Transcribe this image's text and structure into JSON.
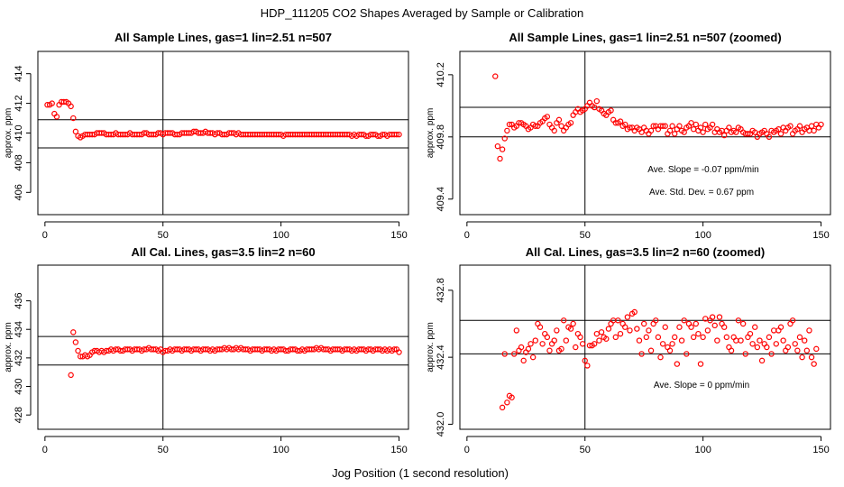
{
  "page": {
    "title": "HDP_111205  CO2 Shapes Averaged by Sample or Calibration",
    "xlabel": "Jog Position (1 second resolution)"
  },
  "colors": {
    "points": "#ff0000",
    "lines": "#000000",
    "axis": "#000000"
  },
  "chart_data": [
    {
      "type": "scatter",
      "title": "All Sample Lines, gas=1 lin=2.51 n=507",
      "xlabel": "",
      "ylabel": "approx. ppm",
      "xlim": [
        -3,
        154
      ],
      "ylim": [
        404.5,
        415.5
      ],
      "xticks": [
        0,
        50,
        100,
        150
      ],
      "yticks": [
        406,
        408,
        410,
        412,
        414
      ],
      "hlines": [
        409.0,
        410.9
      ],
      "vlines": [
        50
      ],
      "grid": false,
      "annotations": [],
      "x_start": 1,
      "values": [
        411.9,
        411.9,
        412.0,
        411.3,
        411.1,
        411.9,
        412.1,
        412.1,
        412.1,
        412.0,
        411.8,
        411.0,
        410.1,
        409.8,
        409.7,
        409.8,
        409.9,
        409.9,
        409.9,
        409.9,
        409.9,
        410.0,
        410.0,
        410.0,
        410.0,
        409.9,
        409.9,
        409.9,
        409.9,
        410.0,
        409.9,
        409.9,
        409.9,
        409.9,
        409.9,
        410.0,
        409.9,
        409.9,
        409.9,
        409.9,
        409.9,
        410.0,
        410.0,
        409.9,
        409.9,
        409.9,
        409.9,
        410.0,
        410.0,
        409.9,
        410.0,
        410.0,
        410.0,
        410.0,
        409.9,
        409.9,
        409.9,
        410.0,
        410.0,
        410.0,
        410.0,
        410.0,
        410.1,
        410.1,
        410.0,
        410.0,
        410.0,
        410.1,
        410.0,
        410.0,
        410.0,
        409.9,
        410.0,
        410.0,
        409.9,
        409.9,
        409.9,
        410.0,
        410.0,
        410.0,
        409.9,
        410.0,
        409.9,
        409.9,
        409.9,
        409.9,
        409.9,
        409.9,
        409.9,
        409.9,
        409.9,
        409.9,
        409.9,
        409.9,
        409.9,
        409.9,
        409.9,
        409.9,
        409.9,
        409.9,
        409.8,
        409.9,
        409.9,
        409.9,
        409.9,
        409.9,
        409.9,
        409.9,
        409.9,
        409.9,
        409.9,
        409.9,
        409.9,
        409.9,
        409.9,
        409.9,
        409.9,
        409.9,
        409.9,
        409.9,
        409.9,
        409.9,
        409.9,
        409.9,
        409.9,
        409.9,
        409.9,
        409.9,
        409.9,
        409.8,
        409.9,
        409.8,
        409.9,
        409.9,
        409.9,
        409.8,
        409.8,
        409.9,
        409.9,
        409.9,
        409.8,
        409.8,
        409.9,
        409.9,
        409.8,
        409.9,
        409.9,
        409.9,
        409.9,
        409.9
      ]
    },
    {
      "type": "scatter",
      "title": "All Sample Lines, gas=1 lin=2.51 n=507 (zoomed)",
      "xlabel": "",
      "ylabel": "approx. ppm",
      "xlim": [
        -3,
        154
      ],
      "ylim": [
        409.3,
        410.35
      ],
      "xticks": [
        0,
        50,
        100,
        150
      ],
      "yticks": [
        409.4,
        409.8,
        410.2
      ],
      "ytick_labels": [
        "409.4",
        "409.8",
        "410.2"
      ],
      "hlines": [
        409.8,
        409.99
      ],
      "vlines": [
        50
      ],
      "grid": false,
      "annotations": [
        "Ave. Slope =  -0.07  ppm/min",
        "Ave. Std. Dev. =  0.67  ppm"
      ],
      "x_start": 12,
      "values": [
        410.19,
        409.74,
        409.66,
        409.72,
        409.79,
        409.84,
        409.88,
        409.88,
        409.86,
        409.87,
        409.89,
        409.89,
        409.88,
        409.87,
        409.85,
        409.86,
        409.88,
        409.87,
        409.87,
        409.89,
        409.9,
        409.92,
        409.93,
        409.88,
        409.86,
        409.84,
        409.89,
        409.91,
        409.87,
        409.84,
        409.86,
        409.88,
        409.89,
        409.94,
        409.96,
        409.98,
        409.96,
        409.97,
        409.98,
        410.0,
        410.02,
        410.0,
        409.99,
        410.03,
        409.98,
        409.97,
        409.95,
        409.94,
        409.96,
        409.97,
        409.91,
        409.89,
        409.89,
        409.9,
        409.87,
        409.88,
        409.85,
        409.86,
        409.86,
        409.84,
        409.86,
        409.85,
        409.83,
        409.86,
        409.84,
        409.82,
        409.84,
        409.87,
        409.87,
        409.85,
        409.87,
        409.87,
        409.87,
        409.82,
        409.84,
        409.87,
        409.82,
        409.85,
        409.87,
        409.84,
        409.83,
        409.86,
        409.87,
        409.89,
        409.85,
        409.88,
        409.84,
        409.86,
        409.83,
        409.88,
        409.85,
        409.86,
        409.88,
        409.83,
        409.85,
        409.83,
        409.84,
        409.81,
        409.84,
        409.86,
        409.83,
        409.84,
        409.83,
        409.86,
        409.85,
        409.83,
        409.82,
        409.82,
        409.82,
        409.84,
        409.83,
        409.8,
        409.82,
        409.83,
        409.84,
        409.82,
        409.8,
        409.84,
        409.83,
        409.84,
        409.85,
        409.82,
        409.86,
        409.84,
        409.86,
        409.87,
        409.82,
        409.84,
        409.85,
        409.87,
        409.83,
        409.85,
        409.86,
        409.84,
        409.87,
        409.84,
        409.88,
        409.86,
        409.88
      ]
    },
    {
      "type": "scatter",
      "title": "All Cal. Lines, gas=3.5 lin=2 n=60",
      "xlabel": "",
      "ylabel": "approx. ppm",
      "xlim": [
        -3,
        154
      ],
      "ylim": [
        427,
        438.5
      ],
      "xticks": [
        0,
        50,
        100,
        150
      ],
      "yticks": [
        428,
        430,
        432,
        434,
        436
      ],
      "hlines": [
        431.5,
        433.5
      ],
      "vlines": [
        50
      ],
      "grid": false,
      "annotations": [],
      "x_start": 11,
      "values": [
        430.8,
        433.8,
        433.1,
        432.5,
        432.1,
        432.1,
        432.2,
        432.1,
        432.2,
        432.4,
        432.5,
        432.5,
        432.4,
        432.5,
        432.4,
        432.5,
        432.5,
        432.6,
        432.5,
        432.6,
        432.6,
        432.5,
        432.5,
        432.6,
        432.6,
        432.6,
        432.5,
        432.6,
        432.6,
        432.6,
        432.5,
        432.6,
        432.6,
        432.7,
        432.6,
        432.6,
        432.6,
        432.5,
        432.6,
        432.4,
        432.5,
        432.5,
        432.6,
        432.5,
        432.6,
        432.6,
        432.6,
        432.5,
        432.6,
        432.6,
        432.6,
        432.5,
        432.6,
        432.6,
        432.6,
        432.5,
        432.6,
        432.6,
        432.6,
        432.5,
        432.6,
        432.5,
        432.6,
        432.6,
        432.6,
        432.7,
        432.6,
        432.7,
        432.6,
        432.6,
        432.7,
        432.6,
        432.7,
        432.6,
        432.6,
        432.6,
        432.5,
        432.6,
        432.6,
        432.6,
        432.6,
        432.5,
        432.6,
        432.6,
        432.6,
        432.5,
        432.6,
        432.5,
        432.6,
        432.6,
        432.6,
        432.5,
        432.5,
        432.6,
        432.6,
        432.6,
        432.5,
        432.5,
        432.6,
        432.5,
        432.6,
        432.6,
        432.6,
        432.6,
        432.7,
        432.6,
        432.7,
        432.6,
        432.6,
        432.6,
        432.5,
        432.6,
        432.6,
        432.6,
        432.6,
        432.5,
        432.6,
        432.6,
        432.6,
        432.5,
        432.6,
        432.5,
        432.6,
        432.6,
        432.6,
        432.5,
        432.6,
        432.6,
        432.5,
        432.6,
        432.6,
        432.6,
        432.5,
        432.6,
        432.5,
        432.6,
        432.5,
        432.6,
        432.6,
        432.4
      ]
    },
    {
      "type": "scatter",
      "title": "All Cal. Lines, gas=3.5 lin=2 n=60 (zoomed)",
      "xlabel": "",
      "ylabel": "approx. ppm",
      "xlim": [
        -3,
        154
      ],
      "ylim": [
        431.97,
        432.95
      ],
      "xticks": [
        0,
        50,
        100,
        150
      ],
      "yticks": [
        432.0,
        432.4,
        432.8
      ],
      "ytick_labels": [
        "432.0",
        "432.4",
        "432.8"
      ],
      "hlines": [
        432.42,
        432.62
      ],
      "vlines": [
        50
      ],
      "grid": false,
      "annotations": [
        "Ave. Slope =  0  ppm/min"
      ],
      "x_start": 15,
      "values": [
        432.1,
        432.42,
        432.13,
        432.17,
        432.16,
        432.42,
        432.56,
        432.44,
        432.46,
        432.38,
        432.43,
        432.45,
        432.48,
        432.4,
        432.5,
        432.6,
        432.58,
        432.48,
        432.54,
        432.52,
        432.44,
        432.48,
        432.5,
        432.56,
        432.44,
        432.45,
        432.62,
        432.5,
        432.58,
        432.57,
        432.6,
        432.46,
        432.54,
        432.52,
        432.48,
        432.38,
        432.35,
        432.47,
        432.47,
        432.48,
        432.54,
        432.5,
        432.55,
        432.52,
        432.51,
        432.57,
        432.6,
        432.62,
        432.52,
        432.62,
        432.54,
        432.6,
        432.58,
        432.64,
        432.56,
        432.66,
        432.67,
        432.57,
        432.5,
        432.42,
        432.6,
        432.52,
        432.56,
        432.44,
        432.6,
        432.62,
        432.52,
        432.4,
        432.48,
        432.58,
        432.46,
        432.44,
        432.48,
        432.52,
        432.36,
        432.58,
        432.5,
        432.62,
        432.42,
        432.6,
        432.58,
        432.52,
        432.6,
        432.54,
        432.36,
        432.52,
        432.63,
        432.56,
        432.62,
        432.64,
        432.59,
        432.5,
        432.64,
        432.6,
        432.58,
        432.52,
        432.46,
        432.44,
        432.52,
        432.5,
        432.62,
        432.5,
        432.6,
        432.42,
        432.52,
        432.54,
        432.48,
        432.58,
        432.46,
        432.5,
        432.38,
        432.48,
        432.46,
        432.52,
        432.42,
        432.56,
        432.48,
        432.56,
        432.58,
        432.5,
        432.44,
        432.46,
        432.6,
        432.62,
        432.48,
        432.44,
        432.52,
        432.4,
        432.5,
        432.44,
        432.56,
        432.4,
        432.36,
        432.45
      ]
    }
  ]
}
